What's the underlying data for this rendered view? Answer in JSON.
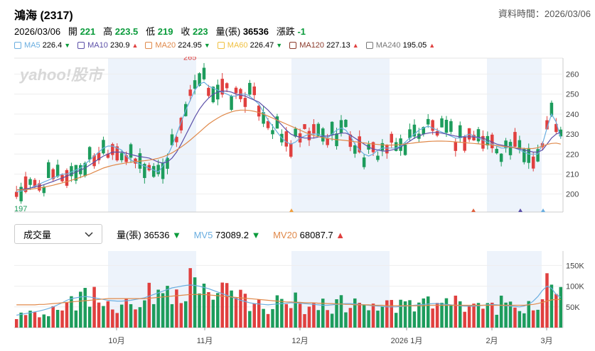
{
  "header": {
    "title": "鴻海 (2317)",
    "data_time": "資料時間：2026/03/06"
  },
  "quote": {
    "date": "2026/03/06",
    "open_label": "開",
    "open": "221",
    "high_label": "高",
    "high": "223.5",
    "low_label": "低",
    "low": "219",
    "close_label": "收",
    "close": "223",
    "volume_label": "量(張)",
    "volume": "36536",
    "change_label": "漲跌",
    "change": "-1"
  },
  "ma_legend": [
    {
      "label": "MA5",
      "value": "226.4",
      "dir": "▼",
      "color": "#6aaee0",
      "dir_color": "#0a9b3b"
    },
    {
      "label": "MA10",
      "value": "230.9",
      "dir": "▲",
      "color": "#5b4fa8",
      "dir_color": "#e0403f"
    },
    {
      "label": "MA20",
      "value": "224.95",
      "dir": "▼",
      "color": "#e0894a",
      "dir_color": "#0a9b3b"
    },
    {
      "label": "MA60",
      "value": "226.47",
      "dir": "▼",
      "color": "#f0c040",
      "dir_color": "#0a9b3b"
    },
    {
      "label": "MA120",
      "value": "227.13",
      "dir": "▲",
      "color": "#8b3a2a",
      "dir_color": "#e0403f"
    },
    {
      "label": "MA240",
      "value": "195.05",
      "dir": "▲",
      "color": "#777777",
      "dir_color": "#e0403f"
    }
  ],
  "watermark": "yahoo!股市",
  "volume_selector": {
    "label": "成交量"
  },
  "volume_legend": {
    "vol_label": "量(張)",
    "vol": "36536",
    "vol_dir": "▼",
    "mv5_label": "MV5",
    "mv5": "73089.2",
    "mv5_dir": "▼",
    "mv20_label": "MV20",
    "mv20": "68087.7",
    "mv20_dir": "▲"
  },
  "chart_data": [
    {
      "type": "candlestick",
      "yticks": [
        200,
        210,
        220,
        230,
        240,
        250,
        260
      ],
      "ylim": [
        191,
        268
      ],
      "max_label": "265",
      "min_label": "197",
      "x_labels": [
        "10月",
        "11月",
        "12月",
        "2026 1月",
        "2月",
        "3月"
      ],
      "series": [
        {
          "name": "MA5",
          "values": [
            201,
            201.5,
            202,
            203,
            204,
            205,
            206,
            207,
            208,
            209,
            210,
            210,
            211,
            212,
            213,
            215,
            217,
            219,
            221,
            223,
            224,
            224,
            223,
            222,
            219,
            217,
            216,
            215,
            214,
            213,
            212,
            211,
            214,
            219,
            224,
            230,
            236,
            242,
            247,
            252,
            255,
            256,
            254,
            253,
            252,
            251,
            250,
            249,
            249,
            250,
            250,
            249,
            247,
            245,
            241,
            237,
            234,
            231,
            228,
            226,
            225,
            226,
            228,
            229,
            230,
            230,
            230,
            229,
            228,
            230,
            232,
            233,
            232,
            229,
            225,
            222,
            220,
            219,
            220,
            222,
            223,
            223,
            223,
            223,
            224,
            226,
            228,
            230,
            232,
            233,
            234,
            233,
            232,
            231,
            230,
            229,
            228,
            228,
            229,
            230,
            229,
            228,
            227,
            226,
            225,
            224,
            223,
            223,
            224,
            223,
            222,
            221,
            220,
            220,
            220,
            225,
            233,
            240,
            236,
            228
          ]
        },
        {
          "name": "MA10",
          "values": [
            202,
            202.3,
            202.6,
            203,
            203.5,
            204,
            204.7,
            205.5,
            206.3,
            207.2,
            208,
            209,
            210,
            211,
            212,
            213,
            214.5,
            216,
            217.5,
            219,
            220,
            221,
            221,
            221,
            220.5,
            219.8,
            219.2,
            218.7,
            218.4,
            218,
            217,
            216,
            215.5,
            216,
            218,
            221,
            225,
            229.5,
            234,
            238.5,
            242.5,
            245.5,
            248,
            250,
            251,
            251.5,
            251.5,
            251,
            250,
            249.5,
            249,
            248,
            247,
            246,
            244,
            242,
            239.5,
            237,
            234.5,
            232,
            230,
            229,
            228.5,
            228,
            228,
            228,
            228.5,
            229,
            229,
            229.5,
            230,
            230.5,
            230.5,
            229.5,
            228,
            226.5,
            225,
            223.5,
            222.5,
            222,
            221.5,
            221.5,
            222,
            222.5,
            223.5,
            225,
            226.5,
            228,
            229,
            230,
            230.5,
            230.8,
            230.8,
            230.5,
            230,
            229.5,
            229,
            228.6,
            228.6,
            228.6,
            228.6,
            228.4,
            228,
            227,
            226,
            225,
            224.5,
            224,
            223.5,
            223,
            222.5,
            222,
            221.5,
            221,
            221,
            222,
            225,
            228,
            230,
            231
          ]
        },
        {
          "name": "MA20",
          "values": [
            202,
            202.1,
            202.2,
            202.4,
            202.7,
            203,
            203.4,
            203.9,
            204.4,
            205,
            205.6,
            206.2,
            206.9,
            207.6,
            208.4,
            209.2,
            210,
            211,
            212,
            213,
            213.7,
            214.3,
            214.8,
            215.2,
            215.6,
            215.9,
            216.2,
            216.5,
            216.7,
            217,
            217.4,
            217.9,
            218.6,
            219.5,
            220.6,
            222,
            223.5,
            225.2,
            227,
            229,
            231,
            233,
            235,
            236.6,
            238,
            239.3,
            240.3,
            241.1,
            241.7,
            242,
            242,
            241.8,
            241.4,
            240.8,
            240,
            239,
            238,
            237,
            236,
            235,
            234,
            233,
            232,
            231,
            230,
            229.3,
            228.7,
            228.2,
            227.8,
            227.5,
            227.2,
            227,
            226.8,
            226.5,
            226.2,
            225.9,
            225.6,
            225.3,
            225,
            224.8,
            224.6,
            224.5,
            224.5,
            224.6,
            224.8,
            225,
            225.3,
            225.6,
            225.9,
            226.1,
            226.3,
            226.4,
            226.5,
            226.5,
            226.4,
            226.3,
            226.1,
            225.9,
            225.7,
            225.5,
            225.3,
            225.1,
            224.9,
            224.7,
            224.5,
            224.3,
            224,
            223.7,
            223.4,
            223.2,
            223,
            222.8,
            222.7,
            222.8,
            223.2,
            224,
            224.8,
            225.3,
            225.5,
            225
          ]
        }
      ]
    },
    {
      "type": "bar",
      "name": "量(張)",
      "yticks": [
        50000,
        100000,
        150000
      ],
      "ytick_labels": [
        "50K",
        "100K",
        "150K"
      ],
      "ylim": [
        0,
        185000
      ],
      "series": [
        {
          "name": "MV5",
          "values": [
            30,
            32,
            34,
            36,
            38,
            40,
            43,
            46,
            50,
            55,
            60,
            66,
            70,
            72,
            74,
            75,
            74,
            72,
            70,
            68,
            66,
            65,
            64,
            64,
            65,
            66,
            68,
            70,
            72,
            76,
            80,
            84,
            88,
            92,
            96,
            98,
            100,
            102,
            103,
            102,
            100,
            97,
            94,
            90,
            86,
            82,
            78,
            74,
            70,
            66,
            63,
            60,
            58,
            57,
            56,
            55,
            56,
            57,
            58,
            59,
            60,
            60,
            59,
            58,
            57,
            56,
            55,
            54,
            54,
            55,
            56,
            57,
            58,
            58,
            57,
            56,
            55,
            54,
            53,
            52,
            51,
            50,
            50,
            50,
            51,
            52,
            53,
            54,
            55,
            56,
            57,
            58,
            58,
            57,
            56,
            55,
            54,
            53,
            52,
            52,
            52,
            53,
            54,
            55,
            56,
            55,
            54,
            53,
            52,
            51,
            50,
            52,
            56,
            64,
            75,
            90,
            100,
            95,
            80,
            73
          ]
        },
        {
          "name": "MV20",
          "values": [
            55,
            55,
            55,
            55,
            55,
            56,
            56,
            57,
            58,
            59,
            60,
            61,
            62,
            63,
            64,
            65,
            66,
            67,
            68,
            69,
            70,
            70,
            70,
            70,
            70,
            70,
            70,
            70,
            70,
            71,
            72,
            73,
            74,
            75,
            76,
            77,
            78,
            79,
            80,
            80,
            80,
            80,
            79,
            78,
            77,
            76,
            75,
            74,
            73,
            72,
            71,
            70,
            69,
            68,
            67,
            66,
            65,
            64,
            63,
            62,
            62,
            61,
            61,
            60,
            60,
            60,
            59,
            59,
            58,
            58,
            57,
            57,
            56,
            56,
            55,
            55,
            55,
            55,
            54,
            54,
            54,
            53,
            53,
            53,
            53,
            53,
            53,
            53,
            53,
            53,
            54,
            54,
            54,
            54,
            54,
            54,
            54,
            54,
            54,
            54,
            54,
            54,
            54,
            54,
            54,
            54,
            54,
            54,
            54,
            54,
            54,
            54,
            55,
            56,
            58,
            61,
            64,
            67,
            68,
            68
          ]
        }
      ]
    }
  ]
}
